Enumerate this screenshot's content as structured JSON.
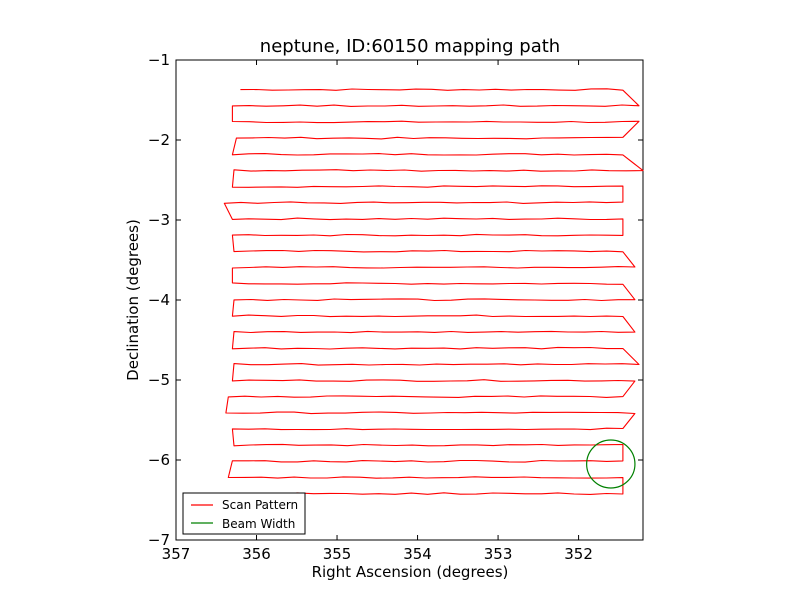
{
  "chart_data": {
    "type": "line",
    "title": "neptune, ID:60150 mapping path",
    "xlabel": "Right Ascension (degrees)",
    "ylabel": "Declination (degrees)",
    "xlim": [
      357,
      351.2
    ],
    "ylim": [
      -7,
      -1
    ],
    "x_inverted": true,
    "xticks": [
      357,
      356,
      355,
      354,
      353,
      352
    ],
    "yticks": [
      -1,
      -2,
      -3,
      -4,
      -5,
      -6,
      -7
    ],
    "xtick_labels": [
      "357",
      "356",
      "355",
      "354",
      "353",
      "352"
    ],
    "ytick_labels": [
      "−1",
      "−2",
      "−3",
      "−4",
      "−5",
      "−6",
      "−7"
    ],
    "legend_location": "lower left",
    "grid": false,
    "series": [
      {
        "name": "Scan Pattern",
        "color": "#ff0000",
        "style": "raster",
        "ra_start": 356.2,
        "ra_end": 351.25,
        "dec_start": -1.37,
        "dec_end": -6.42,
        "rows": 26,
        "x_west_edges": [
          356.2,
          356.3,
          356.3,
          356.25,
          356.3,
          356.28,
          356.3,
          356.4,
          356.3,
          356.3,
          356.28,
          356.3,
          356.3,
          356.28,
          356.3,
          356.28,
          356.3,
          356.28,
          356.3,
          356.35,
          356.38,
          356.3,
          356.28,
          356.3,
          356.35,
          356.3
        ],
        "x_east_edges": [
          351.45,
          351.25,
          351.25,
          351.45,
          351.45,
          351.2,
          351.45,
          351.45,
          351.45,
          351.45,
          351.45,
          351.3,
          351.45,
          351.3,
          351.45,
          351.3,
          351.45,
          351.25,
          351.3,
          351.45,
          351.3,
          351.45,
          351.45,
          351.45,
          351.45,
          351.45
        ]
      },
      {
        "name": "Beam Width",
        "color": "#008000",
        "style": "circle",
        "center_ra": 351.6,
        "center_dec": -6.05,
        "radius": 0.3
      }
    ]
  }
}
